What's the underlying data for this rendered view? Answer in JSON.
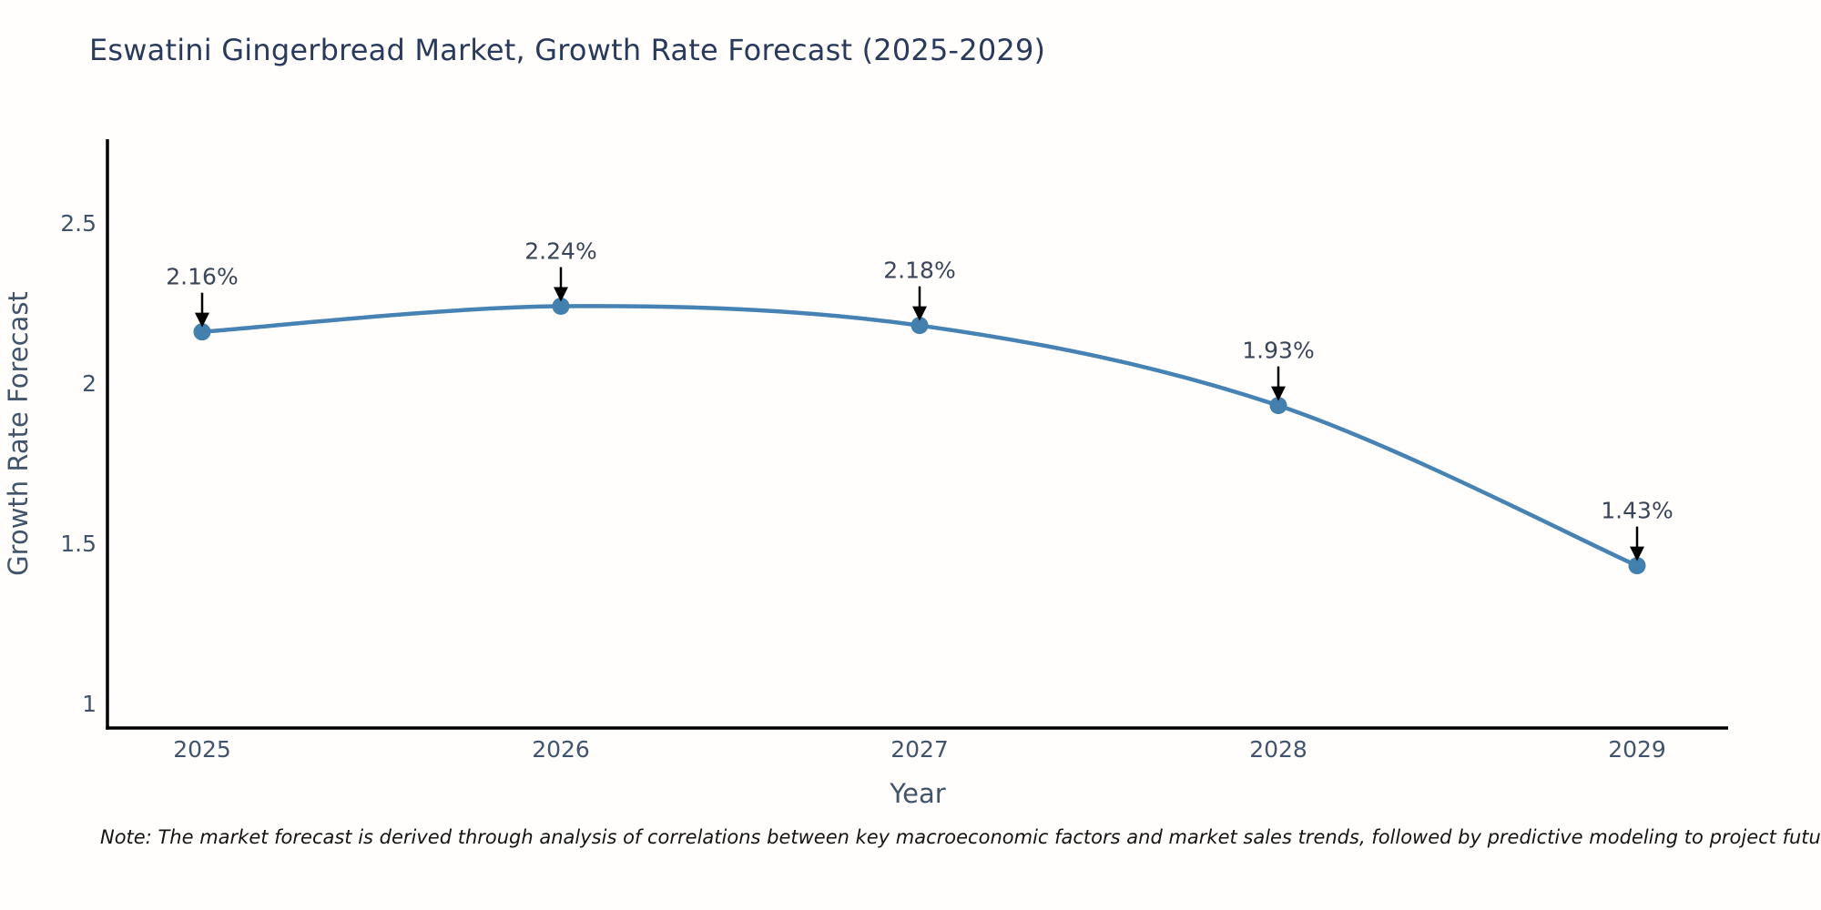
{
  "note": "Note: The market forecast is derived through analysis of correlations between key macroeconomic factors and market sales trends, followed by predictive modeling to project future sales",
  "chart_data": {
    "type": "line",
    "title": "Eswatini Gingerbread Market, Growth Rate Forecast (2025-2029)",
    "xlabel": "Year",
    "ylabel": "Growth Rate Forecast",
    "x": [
      2025,
      2026,
      2027,
      2028,
      2029
    ],
    "values": [
      2.16,
      2.24,
      2.18,
      1.93,
      1.43
    ],
    "point_labels": [
      "2.16%",
      "2.24%",
      "2.18%",
      "1.93%",
      "1.43%"
    ],
    "yticks": [
      1,
      1.5,
      2,
      2.5
    ],
    "ylim": [
      0.92,
      2.77
    ],
    "xlim": [
      2024.73,
      2029.27
    ],
    "grid": false,
    "legend": false,
    "line_color": "#4682b4",
    "marker_color": "#4380ae",
    "axis_line_color": "#000000",
    "axis_text_color": "#42546b",
    "title_color": "#2a3a5c",
    "annotation_color": "#3b4559",
    "arrow_color": "#000000"
  }
}
